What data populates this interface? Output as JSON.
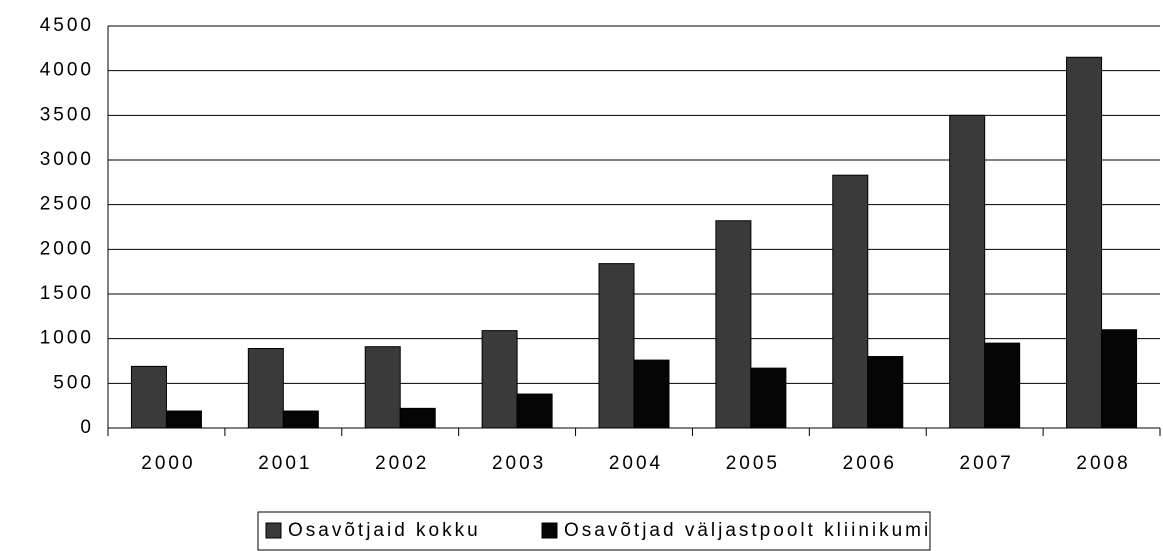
{
  "chart_data": {
    "type": "bar",
    "categories": [
      "2000",
      "2001",
      "2002",
      "2003",
      "2004",
      "2005",
      "2006",
      "2007",
      "2008"
    ],
    "series": [
      {
        "name": "Osavõtjaid kokku",
        "color": "#3a3a3a",
        "values": [
          690,
          890,
          910,
          1090,
          1840,
          2320,
          2830,
          3500,
          4150
        ]
      },
      {
        "name": "Osavõtjad väljastpoolt kliinikumi",
        "color": "#050505",
        "values": [
          190,
          190,
          220,
          380,
          760,
          670,
          800,
          950,
          1100
        ]
      }
    ],
    "ylim": [
      0,
      4500
    ],
    "yticks": [
      0,
      500,
      1000,
      1500,
      2000,
      2500,
      3000,
      3500,
      4000,
      4500
    ],
    "grid": true,
    "legend": "bottom"
  }
}
